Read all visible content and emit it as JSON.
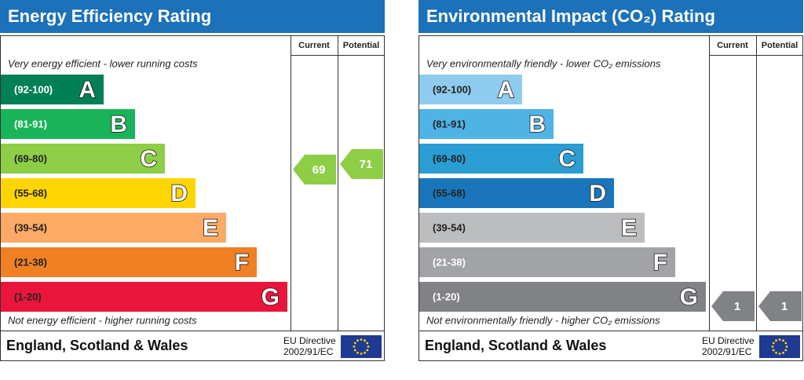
{
  "panels": [
    {
      "title": "Energy Efficiency Rating",
      "columns": [
        "Current",
        "Potential"
      ],
      "top_note": "Very energy efficient - lower running costs",
      "bands": [
        {
          "range": "(92-100)",
          "letter": "A"
        },
        {
          "range": "(81-91)",
          "letter": "B"
        },
        {
          "range": "(69-80)",
          "letter": "C"
        },
        {
          "range": "(55-68)",
          "letter": "D"
        },
        {
          "range": "(39-54)",
          "letter": "E"
        },
        {
          "range": "(21-38)",
          "letter": "F"
        },
        {
          "range": "(1-20)",
          "letter": "G"
        }
      ],
      "bottom_note": "Not energy efficient - higher running costs",
      "current": 69,
      "potential": 71,
      "footer": {
        "region": "England, Scotland & Wales",
        "directive": "EU Directive",
        "code": "2002/91/EC"
      }
    },
    {
      "title": "Environmental Impact (CO₂) Rating",
      "columns": [
        "Current",
        "Potential"
      ],
      "top_note": "Very environmentally friendly - lower CO₂ emissions",
      "bands": [
        {
          "range": "(92-100)",
          "letter": "A"
        },
        {
          "range": "(81-91)",
          "letter": "B"
        },
        {
          "range": "(69-80)",
          "letter": "C"
        },
        {
          "range": "(55-68)",
          "letter": "D"
        },
        {
          "range": "(39-54)",
          "letter": "E"
        },
        {
          "range": "(21-38)",
          "letter": "F"
        },
        {
          "range": "(1-20)",
          "letter": "G"
        }
      ],
      "bottom_note": "Not environmentally friendly - higher CO₂ emissions",
      "current": 1,
      "potential": 1,
      "footer": {
        "region": "England, Scotland & Wales",
        "directive": "EU Directive",
        "code": "2002/91/EC"
      }
    }
  ]
}
